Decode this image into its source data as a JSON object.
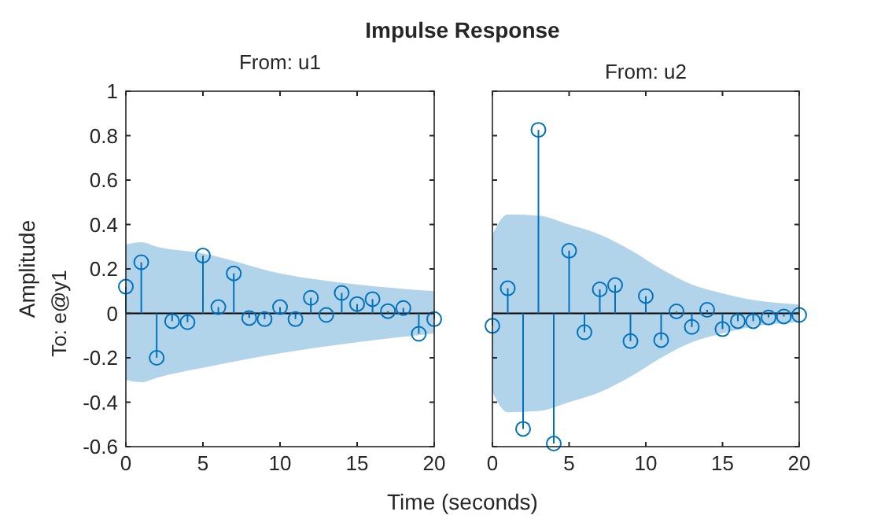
{
  "chart_data": [
    {
      "type": "lollipop",
      "title": "Impulse Response",
      "subtitle": "From: u1",
      "xlabel": "Time (seconds)",
      "ylabel": "Amplitude",
      "annotations": [
        "To: e@y1"
      ],
      "xlim": [
        0,
        20
      ],
      "xticks": [
        0,
        5,
        10,
        15,
        20
      ],
      "ylim": [
        -0.6,
        1
      ],
      "yticks": [
        -0.6,
        -0.4,
        -0.2,
        0,
        0.2,
        0.4,
        0.6,
        0.8,
        1
      ],
      "grid": false,
      "series": [
        {
          "type": "line",
          "marker": "none",
          "color": "#000000",
          "x": [
            0,
            1,
            2,
            5,
            10,
            15,
            20
          ],
          "values": [
            0,
            0,
            0,
            0,
            0,
            0,
            0
          ],
          "lower": [
            -0.3,
            -0.31,
            -0.29,
            -0.245,
            -0.18,
            -0.13,
            -0.09
          ],
          "upper": [
            0.31,
            0.32,
            0.3,
            0.27,
            0.18,
            0.13,
            0.1
          ]
        },
        {
          "marker": "circle",
          "color": "#0072bd",
          "x": [
            0,
            1,
            2,
            3,
            4,
            5,
            6,
            7,
            8,
            9,
            10,
            11,
            12,
            13,
            14,
            15,
            16,
            17,
            18,
            19,
            20
          ],
          "values": [
            0.12,
            0.23,
            -0.2,
            -0.035,
            -0.04,
            0.26,
            0.028,
            0.18,
            -0.021,
            -0.026,
            0.028,
            -0.026,
            0.07,
            -0.007,
            0.092,
            0.042,
            0.064,
            0.01,
            0.024,
            -0.092,
            -0.026
          ]
        }
      ]
    },
    {
      "type": "lollipop",
      "subtitle": "From: u2",
      "xlim": [
        0,
        20
      ],
      "xticks": [
        0,
        5,
        10,
        15,
        20
      ],
      "ylim": [
        -0.6,
        1
      ],
      "tick_labels": "x",
      "grid": false,
      "series": [
        {
          "type": "line",
          "marker": "none",
          "color": "#000000",
          "x": [
            0,
            1,
            3,
            5,
            7,
            9,
            11,
            13,
            15,
            17,
            20
          ],
          "values": [
            0,
            0,
            0,
            0,
            0,
            0,
            0,
            0,
            0,
            0,
            0
          ],
          "lower": [
            -0.355,
            -0.445,
            -0.44,
            -0.4,
            -0.355,
            -0.285,
            -0.2,
            -0.13,
            -0.09,
            -0.06,
            -0.04
          ],
          "upper": [
            0.355,
            0.445,
            0.44,
            0.4,
            0.355,
            0.285,
            0.2,
            0.13,
            0.09,
            0.06,
            0.04
          ]
        },
        {
          "marker": "circle",
          "color": "#0072bd",
          "x": [
            0,
            1,
            2,
            3,
            4,
            5,
            6,
            7,
            8,
            9,
            10,
            11,
            12,
            13,
            14,
            15,
            16,
            17,
            18,
            19,
            20
          ],
          "values": [
            -0.056,
            0.113,
            -0.52,
            0.826,
            -0.586,
            0.282,
            -0.085,
            0.108,
            0.127,
            -0.125,
            0.078,
            -0.12,
            0.009,
            -0.061,
            0.016,
            -0.071,
            -0.035,
            -0.035,
            -0.019,
            -0.014,
            -0.007
          ]
        }
      ]
    }
  ]
}
